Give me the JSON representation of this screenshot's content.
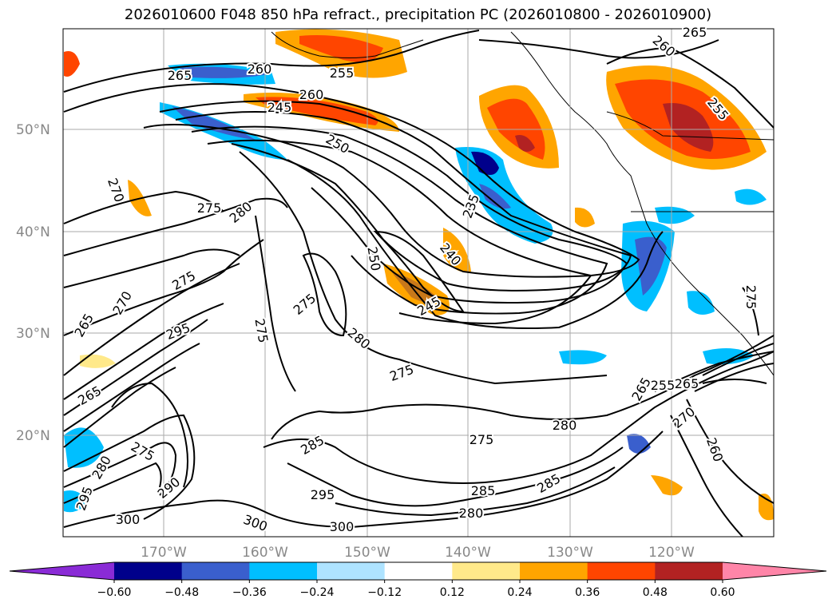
{
  "title": "2026010600 F048 850 hPa refract., precipitation PC (2026010800 - 2026010900)",
  "lat_labels": [
    "50°N",
    "40°N",
    "30°N",
    "20°N"
  ],
  "lon_labels": [
    "170°W",
    "160°W",
    "150°W",
    "140°W",
    "130°W",
    "120°W"
  ],
  "contour_labels": [
    "265",
    "260",
    "255",
    "245",
    "250",
    "260",
    "265",
    "270",
    "275",
    "280",
    "275",
    "270",
    "265",
    "295",
    "275",
    "280",
    "275",
    "275",
    "285",
    "280",
    "295",
    "300",
    "300",
    "300",
    "290",
    "275",
    "280",
    "285",
    "275",
    "280",
    "285",
    "295",
    "240",
    "245",
    "235",
    "255",
    "275",
    "265",
    "255",
    "265",
    "260",
    "270",
    "250",
    "260",
    "265"
  ],
  "colorbar": {
    "ticks": [
      "−0.60",
      "−0.48",
      "−0.36",
      "−0.24",
      "−0.12",
      "0.12",
      "0.24",
      "0.36",
      "0.48",
      "0.60"
    ],
    "colors": [
      "#8a2bd6",
      "#00008b",
      "#3a5fcd",
      "#00bfff",
      "#aee3ff",
      "#ffffff",
      "#ffe98a",
      "#ffa500",
      "#ff4500",
      "#b22222",
      "#ff85a8"
    ]
  }
}
